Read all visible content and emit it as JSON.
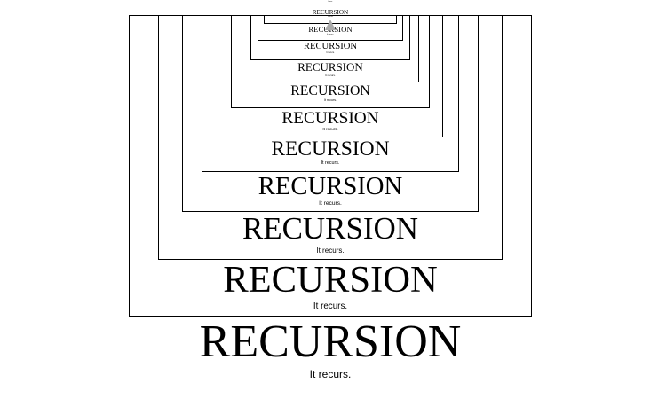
{
  "poster": {
    "title": "RECURSION",
    "caption": "It recurs."
  }
}
